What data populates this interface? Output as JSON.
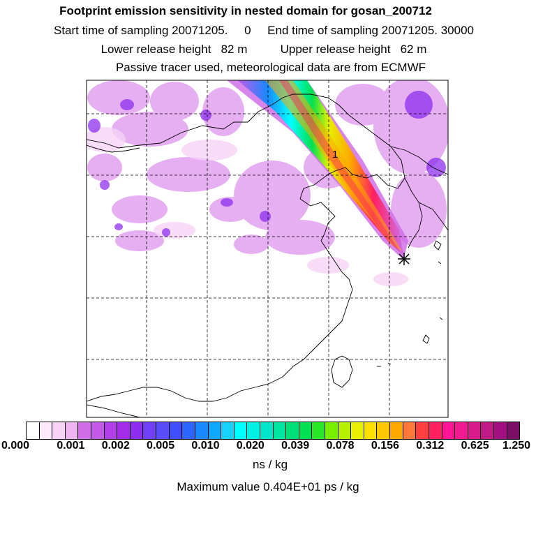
{
  "header": {
    "title": "Footprint emission sensitivity in nested domain for gosan_200712",
    "sampling_line": "Start time of sampling 20071205.     0     End time of sampling 20071205. 30000",
    "release_line": "Lower release height   82 m          Upper release height   62 m",
    "tracer_line": "Passive tracer used, meteorological data are from ECMWF"
  },
  "map": {
    "station_marker": "star-marker-icon",
    "contour_label": "1"
  },
  "colorbar": {
    "colors": [
      "#ffffff",
      "#fbe9fb",
      "#f6d3f6",
      "#eeb6ee",
      "#d06ee8",
      "#c35ae8",
      "#b13fe8",
      "#a22ce8",
      "#8e2ff0",
      "#7040f8",
      "#5a4cf8",
      "#4050ff",
      "#2a66ff",
      "#1a88ff",
      "#10a8ff",
      "#1ad0ff",
      "#00ffff",
      "#00f0e4",
      "#00e6c8",
      "#00e6a0",
      "#00de78",
      "#00e050",
      "#28e828",
      "#78ee00",
      "#b8f000",
      "#e6f000",
      "#ffe000",
      "#ffc800",
      "#ffa800",
      "#ff7a3a",
      "#ff4040",
      "#ff2060",
      "#ff1493",
      "#ee1c90",
      "#d81b8a",
      "#c01a85",
      "#a01080",
      "#7a0d66"
    ],
    "labels": [
      "0.000",
      "0.001",
      "0.002",
      "0.005",
      "0.010",
      "0.020",
      "0.039",
      "0.078",
      "0.156",
      "0.312",
      "0.625",
      "1.250"
    ],
    "units": "ns / kg"
  },
  "footer": {
    "max_value": "Maximum value  0.404E+01 ps / kg"
  }
}
